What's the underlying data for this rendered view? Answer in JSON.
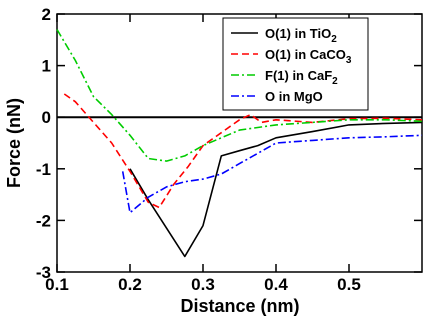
{
  "chart_data": {
    "type": "line",
    "xlabel": "Distance (nm)",
    "ylabel": "Force (nN)",
    "xlim": [
      0.1,
      0.6
    ],
    "ylim": [
      -3,
      2
    ],
    "xticks": [
      0.1,
      0.2,
      0.3,
      0.4,
      0.5
    ],
    "xtick_labels": [
      "0.1",
      "0.2",
      "0.3",
      "0.4",
      "0.5"
    ],
    "yticks": [
      -3,
      -2,
      -1,
      0,
      1,
      2
    ],
    "ytick_labels": [
      "-3",
      "-2",
      "-1",
      "0",
      "1",
      "2"
    ],
    "zero_line": true,
    "grid": false,
    "legend_position": "top-right",
    "series": [
      {
        "name": "O(1) in TiO2",
        "legend": {
          "base": "O(1) in TiO",
          "sub": "2"
        },
        "color": "#000000",
        "style": "solid",
        "x": [
          0.2,
          0.225,
          0.25,
          0.275,
          0.3,
          0.325,
          0.35,
          0.375,
          0.4,
          0.45,
          0.5,
          0.55,
          0.6
        ],
        "y": [
          -1.0,
          -1.6,
          -2.15,
          -2.7,
          -2.1,
          -0.75,
          -0.65,
          -0.55,
          -0.4,
          -0.28,
          -0.15,
          -0.12,
          -0.1
        ]
      },
      {
        "name": "O(1) in CaCO3",
        "legend": {
          "base": "O(1) in CaCO",
          "sub": "3"
        },
        "color": "#ff0000",
        "style": "dashed",
        "x": [
          0.11,
          0.125,
          0.15,
          0.175,
          0.2,
          0.225,
          0.24,
          0.26,
          0.28,
          0.3,
          0.325,
          0.35,
          0.365,
          0.38,
          0.4,
          0.45,
          0.5,
          0.55,
          0.6
        ],
        "y": [
          0.45,
          0.3,
          -0.1,
          -0.5,
          -1.05,
          -1.65,
          -1.75,
          -1.3,
          -0.95,
          -0.55,
          -0.3,
          -0.05,
          0.05,
          -0.1,
          -0.05,
          -0.1,
          -0.03,
          -0.02,
          -0.05
        ]
      },
      {
        "name": "F(1) in CaF2",
        "legend": {
          "base": "F(1) in CaF",
          "sub": "2"
        },
        "color": "#00cc00",
        "style": "dashdot",
        "x": [
          0.1,
          0.125,
          0.15,
          0.175,
          0.2,
          0.225,
          0.25,
          0.275,
          0.3,
          0.325,
          0.35,
          0.4,
          0.45,
          0.5,
          0.55,
          0.6
        ],
        "y": [
          1.7,
          1.1,
          0.4,
          0.05,
          -0.35,
          -0.8,
          -0.85,
          -0.75,
          -0.55,
          -0.4,
          -0.25,
          -0.15,
          -0.1,
          -0.05,
          -0.05,
          -0.08
        ]
      },
      {
        "name": "O in MgO",
        "legend": {
          "base": "O in MgO",
          "sub": ""
        },
        "color": "#0000ff",
        "style": "dashdot",
        "x": [
          0.19,
          0.2,
          0.225,
          0.25,
          0.275,
          0.3,
          0.325,
          0.35,
          0.375,
          0.4,
          0.45,
          0.5,
          0.55,
          0.6
        ],
        "y": [
          -1.05,
          -1.85,
          -1.55,
          -1.35,
          -1.25,
          -1.2,
          -1.1,
          -0.9,
          -0.7,
          -0.5,
          -0.45,
          -0.4,
          -0.38,
          -0.35
        ]
      }
    ]
  }
}
